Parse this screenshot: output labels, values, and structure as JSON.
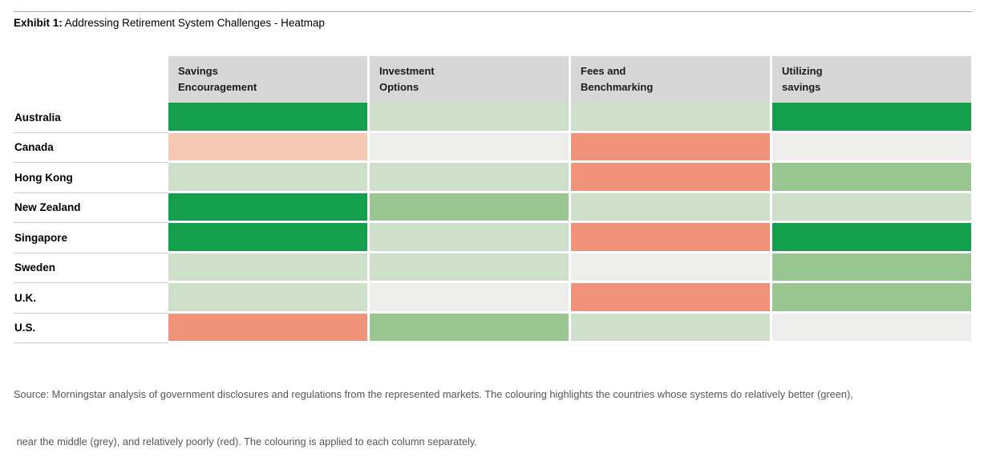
{
  "title": {
    "exhibit_label": "Exhibit 1:",
    "text": "Addressing Retirement System Challenges - Heatmap"
  },
  "chart_data": {
    "type": "heatmap",
    "title": "Addressing Retirement System Challenges - Heatmap",
    "columns": [
      "Savings Encouragement",
      "Investment Options",
      "Fees and Benchmarking",
      "Utilizing savings"
    ],
    "column_header_lines": [
      [
        "Savings",
        "Encouragement"
      ],
      [
        "Investment",
        "Options"
      ],
      [
        "Fees and",
        "Benchmarking"
      ],
      [
        "Utilizing",
        "savings"
      ]
    ],
    "rows": [
      "Australia",
      "Canada",
      "Hong Kong",
      "New Zealand",
      "Singapore",
      "Sweden",
      "U.K.",
      "U.S."
    ],
    "cells": [
      [
        "strong_green",
        "light_green",
        "light_green",
        "strong_green"
      ],
      [
        "light_red",
        "neutral_grey",
        "red",
        "neutral_grey"
      ],
      [
        "light_green",
        "light_green",
        "red",
        "medium_green"
      ],
      [
        "strong_green",
        "medium_green",
        "light_green",
        "light_green"
      ],
      [
        "strong_green",
        "light_green",
        "red",
        "strong_green"
      ],
      [
        "light_green",
        "light_green",
        "neutral_grey",
        "medium_green"
      ],
      [
        "light_green",
        "neutral_grey",
        "red",
        "medium_green"
      ],
      [
        "red",
        "medium_green",
        "light_green",
        "neutral_grey"
      ]
    ],
    "level_colors": {
      "strong_green": "#12a04c",
      "medium_green": "#99c591",
      "light_green": "#cfe0ca",
      "neutral_grey": "#ededeb",
      "light_red": "#f6c9b4",
      "red": "#ef937a"
    },
    "legend": {
      "green": "relatively better",
      "grey": "near the middle",
      "red": "relatively poorly",
      "note": "colouring applied to each column separately"
    },
    "header_background": "#d7d7d7"
  },
  "source": {
    "line1": "Source: Morningstar analysis of government disclosures and regulations from the represented markets. The colouring highlights the countries whose systems do relatively better (green),",
    "line2": " near the middle (grey), and relatively poorly (red). The colouring is applied to each column separately."
  }
}
